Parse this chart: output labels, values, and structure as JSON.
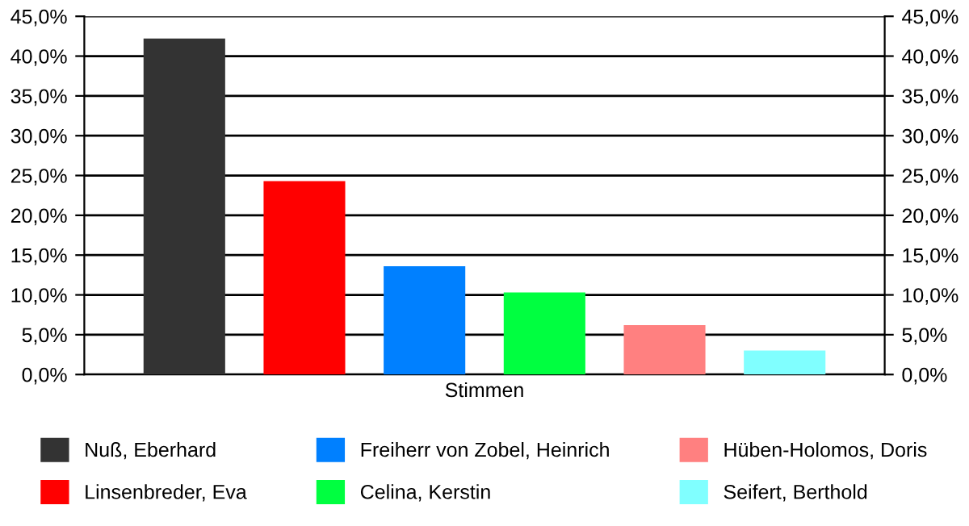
{
  "chart_data": {
    "type": "bar",
    "categories": [
      "Stimmen"
    ],
    "series": [
      {
        "name": "Nuß, Eberhard",
        "color": "#333333",
        "values": [
          42.2
        ]
      },
      {
        "name": "Linsenbreder, Eva",
        "color": "#ff0000",
        "values": [
          24.3
        ]
      },
      {
        "name": "Freiherr von Zobel, Heinrich",
        "color": "#0080ff",
        "values": [
          13.6
        ]
      },
      {
        "name": "Celina, Kerstin",
        "color": "#00ff40",
        "values": [
          10.3
        ]
      },
      {
        "name": "Hüben-Holomos, Doris",
        "color": "#ff8080",
        "values": [
          6.2
        ]
      },
      {
        "name": "Seifert, Berthold",
        "color": "#80ffff",
        "values": [
          3.0
        ]
      }
    ],
    "ylim": [
      0,
      45
    ],
    "yticks": [
      {
        "value": 0,
        "label": "0,0%"
      },
      {
        "value": 5,
        "label": "5,0%"
      },
      {
        "value": 10,
        "label": "10,0%"
      },
      {
        "value": 15,
        "label": "15,0%"
      },
      {
        "value": 20,
        "label": "20,0%"
      },
      {
        "value": 25,
        "label": "25,0%"
      },
      {
        "value": 30,
        "label": "30,0%"
      },
      {
        "value": 35,
        "label": "35,0%"
      },
      {
        "value": 40,
        "label": "40,0%"
      },
      {
        "value": 45,
        "label": "45,0%"
      }
    ],
    "grid": "y",
    "legend": "bottom"
  }
}
